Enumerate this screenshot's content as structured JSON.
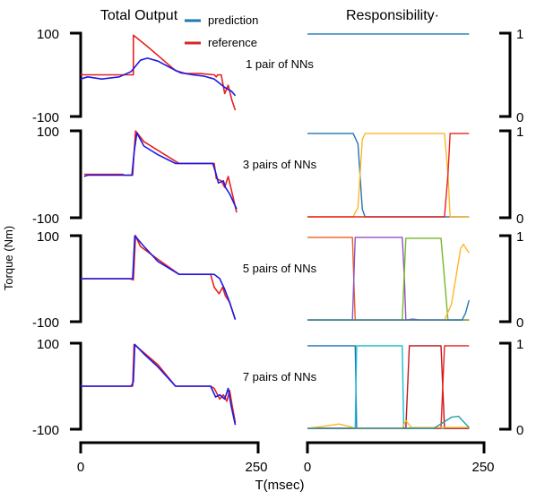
{
  "titles": {
    "left": "Total Output",
    "right": "Responsibility·"
  },
  "legend": [
    {
      "label": "prediction",
      "color": "#1f77b4"
    },
    {
      "label": "reference",
      "color": "#d62728"
    }
  ],
  "y_axis_label": "Torque (Nm)",
  "x_axis_label": "T(msec)",
  "x_ticks": [
    "0",
    "250"
  ],
  "left_y_ticks": [
    "100",
    "-100"
  ],
  "right_y_ticks": [
    "1",
    "0"
  ],
  "chart_data": [
    {
      "type": "line",
      "panel": "total-output",
      "label": "1 pair of NNs",
      "xlim": [
        0,
        250
      ],
      "ylim": [
        -100,
        100
      ],
      "series": [
        {
          "name": "reference",
          "color": "#e8211c",
          "points": [
            [
              0,
              0
            ],
            [
              75,
              0
            ],
            [
              75,
              95
            ],
            [
              95,
              68
            ],
            [
              135,
              10
            ],
            [
              150,
              3
            ],
            [
              170,
              3
            ],
            [
              190,
              0
            ],
            [
              193,
              -5
            ],
            [
              195,
              0
            ],
            [
              200,
              0
            ],
            [
              205,
              -45
            ],
            [
              210,
              -25
            ],
            [
              215,
              -60
            ],
            [
              220,
              -85
            ]
          ]
        },
        {
          "name": "prediction",
          "color": "#1a1ae6",
          "points": [
            [
              0,
              -10
            ],
            [
              10,
              -5
            ],
            [
              30,
              -10
            ],
            [
              55,
              -5
            ],
            [
              72,
              8
            ],
            [
              85,
              35
            ],
            [
              95,
              40
            ],
            [
              110,
              33
            ],
            [
              130,
              15
            ],
            [
              142,
              5
            ],
            [
              160,
              0
            ],
            [
              175,
              -3
            ],
            [
              190,
              -10
            ],
            [
              205,
              -30
            ],
            [
              215,
              -40
            ],
            [
              220,
              -50
            ]
          ]
        }
      ]
    },
    {
      "type": "line",
      "panel": "total-output",
      "label": "3 pairs of NNs",
      "xlim": [
        0,
        250
      ],
      "ylim": [
        -100,
        100
      ],
      "series": [
        {
          "name": "reference",
          "color": "#e8211c",
          "points": [
            [
              5,
              0
            ],
            [
              60,
              0
            ],
            [
              62,
              -2
            ],
            [
              74,
              -2
            ],
            [
              78,
              100
            ],
            [
              90,
              75
            ],
            [
              110,
              55
            ],
            [
              135,
              30
            ],
            [
              140,
              25
            ],
            [
              190,
              25
            ],
            [
              193,
              -10
            ],
            [
              200,
              -15
            ],
            [
              205,
              -30
            ],
            [
              210,
              -5
            ],
            [
              215,
              -40
            ],
            [
              222,
              -88
            ]
          ]
        },
        {
          "name": "prediction",
          "color": "#1a1ae6",
          "points": [
            [
              5,
              -5
            ],
            [
              10,
              -2
            ],
            [
              60,
              -2
            ],
            [
              73,
              -2
            ],
            [
              76,
              50
            ],
            [
              80,
              95
            ],
            [
              90,
              65
            ],
            [
              110,
              45
            ],
            [
              135,
              25
            ],
            [
              140,
              25
            ],
            [
              188,
              25
            ],
            [
              192,
              5
            ],
            [
              196,
              -20
            ],
            [
              203,
              -15
            ],
            [
              206,
              -30
            ],
            [
              212,
              -45
            ],
            [
              222,
              -80
            ]
          ]
        }
      ]
    },
    {
      "type": "line",
      "panel": "total-output",
      "label": "5 pairs of NNs",
      "xlim": [
        0,
        250
      ],
      "ylim": [
        -100,
        100
      ],
      "series": [
        {
          "name": "reference",
          "color": "#e8211c",
          "points": [
            [
              0,
              0
            ],
            [
              70,
              0
            ],
            [
              75,
              -3
            ],
            [
              78,
              100
            ],
            [
              85,
              75
            ],
            [
              110,
              45
            ],
            [
              140,
              10
            ],
            [
              185,
              10
            ],
            [
              190,
              -20
            ],
            [
              197,
              -35
            ],
            [
              202,
              -20
            ],
            [
              206,
              -40
            ],
            [
              212,
              -55
            ],
            [
              220,
              -95
            ]
          ]
        },
        {
          "name": "prediction",
          "color": "#1a1ae6",
          "points": [
            [
              0,
              0
            ],
            [
              70,
              0
            ],
            [
              74,
              0
            ],
            [
              77,
              100
            ],
            [
              90,
              75
            ],
            [
              110,
              40
            ],
            [
              140,
              10
            ],
            [
              190,
              10
            ],
            [
              198,
              0
            ],
            [
              205,
              -25
            ],
            [
              212,
              -55
            ],
            [
              220,
              -95
            ]
          ]
        }
      ]
    },
    {
      "type": "line",
      "panel": "total-output",
      "label": "7 pairs of NNs",
      "xlim": [
        0,
        250
      ],
      "ylim": [
        -100,
        100
      ],
      "series": [
        {
          "name": "reference",
          "color": "#e8211c",
          "points": [
            [
              0,
              0
            ],
            [
              70,
              0
            ],
            [
              74,
              0
            ],
            [
              76,
              97
            ],
            [
              85,
              85
            ],
            [
              110,
              50
            ],
            [
              135,
              0
            ],
            [
              185,
              0
            ],
            [
              190,
              -5
            ],
            [
              198,
              -30
            ],
            [
              203,
              -20
            ],
            [
              208,
              -35
            ],
            [
              212,
              -10
            ],
            [
              215,
              -40
            ],
            [
              220,
              -85
            ]
          ]
        },
        {
          "name": "prediction",
          "color": "#1a1ae6",
          "points": [
            [
              0,
              0
            ],
            [
              72,
              0
            ],
            [
              75,
              10
            ],
            [
              77,
              97
            ],
            [
              90,
              75
            ],
            [
              110,
              45
            ],
            [
              135,
              0
            ],
            [
              185,
              0
            ],
            [
              192,
              -25
            ],
            [
              198,
              -20
            ],
            [
              205,
              -30
            ],
            [
              210,
              -5
            ],
            [
              214,
              -45
            ],
            [
              220,
              -90
            ]
          ]
        }
      ]
    },
    {
      "type": "line",
      "panel": "responsibility",
      "label": "1 pair of NNs",
      "xlim": [
        0,
        250
      ],
      "ylim": [
        0,
        1
      ],
      "series": [
        {
          "color": "#1f77b4",
          "points": [
            [
              0,
              0.99
            ],
            [
              230,
              0.99
            ]
          ]
        }
      ]
    },
    {
      "type": "line",
      "panel": "responsibility",
      "label": "3 pairs of NNs",
      "xlim": [
        0,
        250
      ],
      "ylim": [
        0,
        1
      ],
      "series": [
        {
          "color": "#1f77b4",
          "points": [
            [
              0,
              0.97
            ],
            [
              65,
              0.97
            ],
            [
              72,
              0.85
            ],
            [
              78,
              0.1
            ],
            [
              82,
              0.01
            ],
            [
              230,
              0.01
            ]
          ]
        },
        {
          "color": "#ffb627",
          "points": [
            [
              0,
              0.01
            ],
            [
              65,
              0.01
            ],
            [
              72,
              0.12
            ],
            [
              78,
              0.9
            ],
            [
              82,
              0.97
            ],
            [
              195,
              0.97
            ],
            [
              200,
              0.5
            ],
            [
              203,
              0.01
            ],
            [
              230,
              0.01
            ]
          ]
        },
        {
          "color": "#e8211c",
          "points": [
            [
              0,
              0.01
            ],
            [
              195,
              0.01
            ],
            [
              200,
              0.5
            ],
            [
              203,
              0.97
            ],
            [
              230,
              0.97
            ]
          ]
        }
      ]
    },
    {
      "type": "line",
      "panel": "responsibility",
      "label": "5 pairs of NNs",
      "xlim": [
        0,
        250
      ],
      "ylim": [
        0,
        1
      ],
      "series": [
        {
          "color": "#e8621c",
          "points": [
            [
              0,
              0.98
            ],
            [
              64,
              0.98
            ],
            [
              66,
              0.5
            ],
            [
              68,
              0.02
            ],
            [
              230,
              0.02
            ]
          ]
        },
        {
          "color": "#9150c8",
          "points": [
            [
              0,
              0.02
            ],
            [
              64,
              0.02
            ],
            [
              68,
              0.98
            ],
            [
              135,
              0.98
            ],
            [
              138,
              0.5
            ],
            [
              140,
              0.02
            ],
            [
              150,
              0.03
            ],
            [
              160,
              0.02
            ],
            [
              230,
              0.02
            ]
          ]
        },
        {
          "color": "#76b82a",
          "points": [
            [
              0,
              0.02
            ],
            [
              135,
              0.02
            ],
            [
              140,
              0.97
            ],
            [
              190,
              0.97
            ],
            [
              195,
              0.5
            ],
            [
              200,
              0.02
            ],
            [
              230,
              0.02
            ]
          ]
        },
        {
          "color": "#ffb627",
          "points": [
            [
              0,
              0.02
            ],
            [
              195,
              0.02
            ],
            [
              205,
              0.2
            ],
            [
              212,
              0.55
            ],
            [
              218,
              0.85
            ],
            [
              222,
              0.9
            ],
            [
              230,
              0.8
            ]
          ]
        },
        {
          "color": "#1f77b4",
          "points": [
            [
              0,
              0.02
            ],
            [
              220,
              0.02
            ],
            [
              225,
              0.1
            ],
            [
              230,
              0.25
            ]
          ]
        }
      ]
    },
    {
      "type": "line",
      "panel": "responsibility",
      "label": "7 pairs of NNs",
      "xlim": [
        0,
        250
      ],
      "ylim": [
        0,
        1
      ],
      "series": [
        {
          "color": "#1f77b4",
          "points": [
            [
              0,
              0.97
            ],
            [
              68,
              0.97
            ],
            [
              70,
              0.01
            ],
            [
              230,
              0.01
            ]
          ]
        },
        {
          "color": "#17becf",
          "points": [
            [
              0,
              0.01
            ],
            [
              68,
              0.01
            ],
            [
              70,
              0.97
            ],
            [
              135,
              0.97
            ],
            [
              137,
              0.01
            ],
            [
              230,
              0.01
            ]
          ]
        },
        {
          "color": "#c0141c",
          "points": [
            [
              0,
              0.01
            ],
            [
              140,
              0.01
            ],
            [
              145,
              0.97
            ],
            [
              190,
              0.97
            ],
            [
              195,
              0.01
            ],
            [
              230,
              0.01
            ]
          ]
        },
        {
          "color": "#e8211c",
          "points": [
            [
              0,
              0.01
            ],
            [
              190,
              0.01
            ],
            [
              195,
              0.97
            ],
            [
              230,
              0.97
            ]
          ]
        },
        {
          "color": "#ffb627",
          "points": [
            [
              0,
              0.01
            ],
            [
              20,
              0.03
            ],
            [
              45,
              0.06
            ],
            [
              60,
              0.03
            ],
            [
              70,
              0.01
            ],
            [
              135,
              0.01
            ],
            [
              140,
              0.1
            ],
            [
              148,
              0.02
            ],
            [
              230,
              0.02
            ]
          ]
        },
        {
          "color": "#2a9da8",
          "points": [
            [
              0,
              0.01
            ],
            [
              180,
              0.01
            ],
            [
              205,
              0.14
            ],
            [
              215,
              0.15
            ],
            [
              230,
              0.02
            ]
          ]
        }
      ]
    }
  ]
}
